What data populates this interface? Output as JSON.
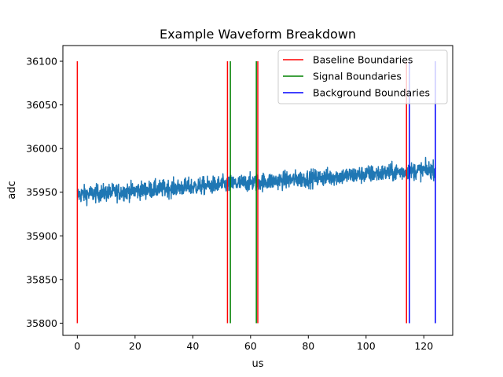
{
  "chart_data": {
    "type": "line",
    "title": "Example Waveform Breakdown",
    "xlabel": "us",
    "ylabel": "adc",
    "xlim": [
      -5,
      130
    ],
    "ylim": [
      35786,
      36118
    ],
    "xticks": [
      0,
      20,
      40,
      60,
      80,
      100,
      120
    ],
    "yticks": [
      35800,
      35850,
      35900,
      35950,
      36000,
      36050,
      36100
    ],
    "grid": false,
    "legend_position": "top-right",
    "waveform": {
      "color": "#1f77b4",
      "x_range": [
        0,
        124
      ],
      "trend_start": 35947,
      "trend_end": 35976,
      "noise_amplitude": 8,
      "sample_count": 1500
    },
    "series": [
      {
        "name": "Baseline Boundaries",
        "color": "#ff0000",
        "x": [
          0,
          52,
          62.5,
          114
        ],
        "y_range": [
          35800,
          36100
        ]
      },
      {
        "name": "Signal Boundaries",
        "color": "#008000",
        "x": [
          53,
          62
        ],
        "y_range": [
          35800,
          36100
        ]
      },
      {
        "name": "Background Boundaries",
        "color": "#0000ff",
        "x": [
          115,
          124
        ],
        "y_range": [
          35800,
          36100
        ]
      }
    ]
  }
}
